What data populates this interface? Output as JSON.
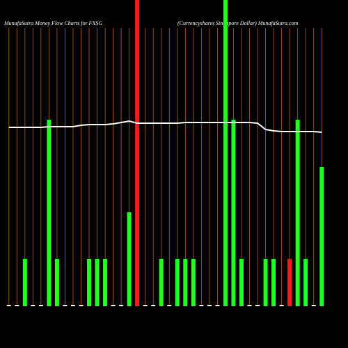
{
  "chart_data": {
    "type": "bar",
    "title": "MunafaSutra  Money Flow  Charts for FXSG",
    "subtitle": "(Currencyshares Singapore  Dollar) MunafaSutra.com",
    "categories": [
      null,
      null,
      null,
      null,
      null,
      null,
      null,
      null,
      null,
      null,
      null,
      null,
      null,
      null,
      null,
      null,
      null,
      null,
      null,
      null,
      null,
      null,
      null,
      null,
      null,
      null,
      null,
      null,
      null,
      null,
      null,
      null,
      null,
      null,
      null,
      null,
      null,
      null,
      null,
      null
    ],
    "values": [
      2,
      2,
      68,
      2,
      2,
      268,
      68,
      2,
      2,
      2,
      68,
      68,
      68,
      2,
      2,
      135,
      440,
      2,
      2,
      68,
      2,
      68,
      68,
      68,
      2,
      2,
      2,
      440,
      268,
      68,
      2,
      2,
      68,
      68,
      2,
      68,
      268,
      68,
      2,
      200
    ],
    "colors": [
      "#ffffff",
      "#ffffff",
      "#22ff22",
      "#ffffff",
      "#ffffff",
      "#22ff22",
      "#22ff22",
      "#ffffff",
      "#ffffff",
      "#ffffff",
      "#22ff22",
      "#22ff22",
      "#22ff22",
      "#ffffff",
      "#ffffff",
      "#22ff22",
      "#ff1a1a",
      "#ffffff",
      "#ffffff",
      "#22ff22",
      "#ffffff",
      "#22ff22",
      "#22ff22",
      "#22ff22",
      "#ffffff",
      "#ffffff",
      "#ffffff",
      "#22ff22",
      "#22ff22",
      "#22ff22",
      "#ffffff",
      "#ffffff",
      "#22ff22",
      "#22ff22",
      "#ffffff",
      "#ff1a1a",
      "#22ff22",
      "#22ff22",
      "#ffffff",
      "#22ff22"
    ],
    "line": {
      "color": "#ffffff",
      "values": [
        257,
        257,
        257,
        257,
        257,
        258,
        258,
        258,
        258,
        260,
        261,
        261,
        261,
        262,
        264,
        266,
        263,
        263,
        263,
        263,
        263,
        263,
        264,
        264,
        264,
        264,
        264,
        264,
        264,
        264,
        264,
        263,
        254,
        252,
        251,
        251,
        251,
        251,
        251,
        250
      ]
    },
    "ylim": [
      0,
      440
    ],
    "grid_color": "#b8650f"
  }
}
